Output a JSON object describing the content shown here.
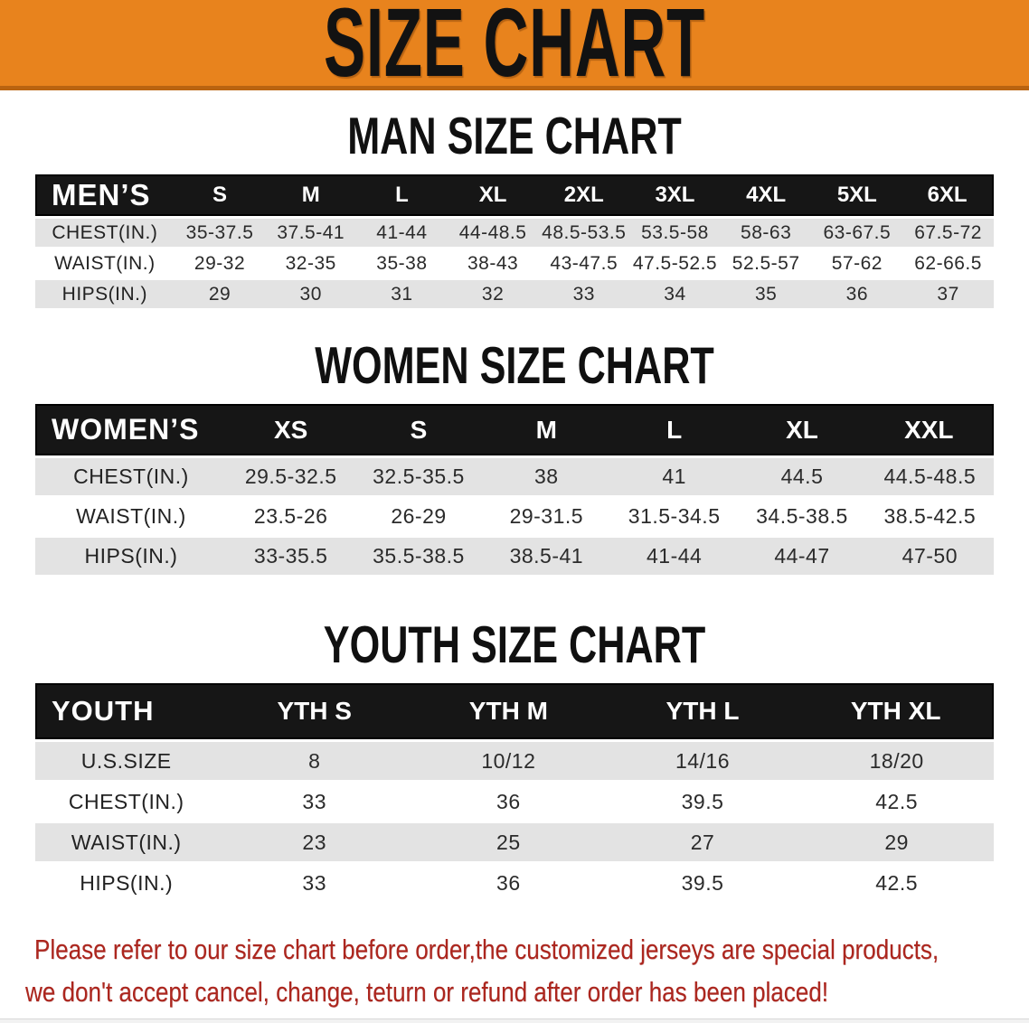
{
  "banner": {
    "title": "SIZE CHART"
  },
  "colors": {
    "orange": "#E8831D",
    "orange-dark": "#B96310",
    "bar-black": "#161616",
    "row-gray": "#E3E3E3",
    "red": "#AC261E"
  },
  "sections": [
    {
      "heading": "MAN SIZE CHART",
      "table": {
        "header_label": "MEN’S",
        "columns": [
          "S",
          "M",
          "L",
          "XL",
          "2XL",
          "3XL",
          "4XL",
          "5XL",
          "6XL"
        ],
        "rows": [
          {
            "label": "CHEST(IN.)",
            "values": [
              "35-37.5",
              "37.5-41",
              "41-44",
              "44-48.5",
              "48.5-53.5",
              "53.5-58",
              "58-63",
              "63-67.5",
              "67.5-72"
            ]
          },
          {
            "label": "WAIST(IN.)",
            "values": [
              "29-32",
              "32-35",
              "35-38",
              "38-43",
              "43-47.5",
              "47.5-52.5",
              "52.5-57",
              "57-62",
              "62-66.5"
            ]
          },
          {
            "label": "HIPS(IN.)",
            "values": [
              "29",
              "30",
              "31",
              "32",
              "33",
              "34",
              "35",
              "36",
              "37"
            ]
          }
        ]
      }
    },
    {
      "heading": "WOMEN SIZE CHART",
      "table": {
        "header_label": "WOMEN’S",
        "columns": [
          "XS",
          "S",
          "M",
          "L",
          "XL",
          "XXL"
        ],
        "rows": [
          {
            "label": "CHEST(IN.)",
            "values": [
              "29.5-32.5",
              "32.5-35.5",
              "38",
              "41",
              "44.5",
              "44.5-48.5"
            ]
          },
          {
            "label": "WAIST(IN.)",
            "values": [
              "23.5-26",
              "26-29",
              "29-31.5",
              "31.5-34.5",
              "34.5-38.5",
              "38.5-42.5"
            ]
          },
          {
            "label": "HIPS(IN.)",
            "values": [
              "33-35.5",
              "35.5-38.5",
              "38.5-41",
              "41-44",
              "44-47",
              "47-50"
            ]
          }
        ]
      }
    },
    {
      "heading": "YOUTH SIZE CHART",
      "table": {
        "header_label": "YOUTH",
        "columns": [
          "YTH S",
          "YTH M",
          "YTH L",
          "YTH XL"
        ],
        "rows": [
          {
            "label": "U.S.SIZE",
            "values": [
              "8",
              "10/12",
              "14/16",
              "18/20"
            ]
          },
          {
            "label": "CHEST(IN.)",
            "values": [
              "33",
              "36",
              "39.5",
              "42.5"
            ]
          },
          {
            "label": "WAIST(IN.)",
            "values": [
              "23",
              "25",
              "27",
              "29"
            ]
          },
          {
            "label": "HIPS(IN.)",
            "values": [
              "33",
              "36",
              "39.5",
              "42.5"
            ]
          }
        ]
      }
    }
  ],
  "disclaimer": {
    "line1": "Please refer to our size chart before order,the customized jerseys are special products,",
    "line2": "we don't accept cancel, change, teturn or refund after order has been placed!"
  }
}
